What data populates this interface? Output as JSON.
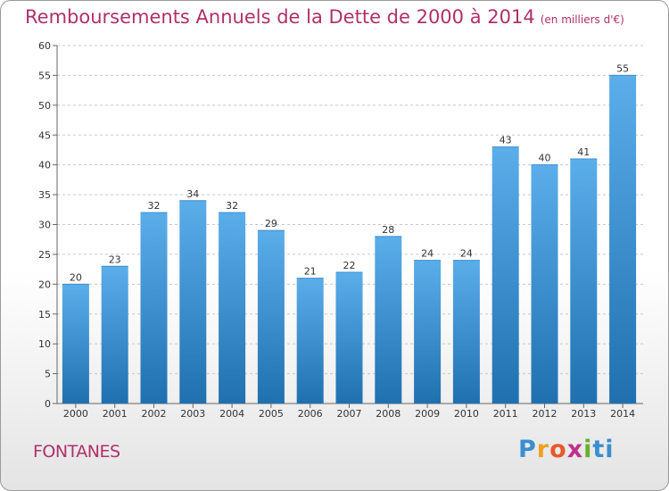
{
  "header": {
    "title": "Remboursements Annuels de la Dette de 2000 à 2014",
    "subtitle": "(en milliers d'€)"
  },
  "footer": {
    "place": "FONTANES",
    "logo_letters": [
      "P",
      "r",
      "o",
      "x",
      "i",
      "ti"
    ]
  },
  "colors": {
    "bar_top": "#5aaeea",
    "bar_bottom": "#2070b0",
    "title": "#b0306a"
  },
  "chart_data": {
    "type": "bar",
    "title": "Remboursements Annuels de la Dette de 2000 à 2014",
    "xlabel": "",
    "ylabel": "",
    "categories": [
      "2000",
      "2001",
      "2002",
      "2003",
      "2004",
      "2005",
      "2006",
      "2007",
      "2008",
      "2009",
      "2010",
      "2011",
      "2012",
      "2013",
      "2014"
    ],
    "values": [
      20,
      23,
      32,
      34,
      32,
      29,
      21,
      22,
      28,
      24,
      24,
      43,
      40,
      41,
      55
    ],
    "ylim": [
      0,
      60
    ],
    "yticks": [
      0,
      5,
      10,
      15,
      20,
      25,
      30,
      35,
      40,
      45,
      50,
      55,
      60
    ],
    "grid": true
  }
}
